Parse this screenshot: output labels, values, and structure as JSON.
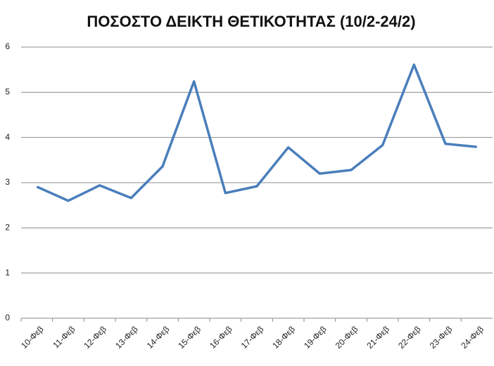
{
  "chart_data": {
    "type": "line",
    "title": "ΠΟΣΟΣΤΟ ΔΕΙΚΤΗ ΘΕΤΙΚΟΤΗΤΑΣ (10/2-24/2)",
    "categories": [
      "10-Φεβ",
      "11-Φεβ",
      "12-Φεβ",
      "13-Φεβ",
      "14-Φεβ",
      "15-Φεβ",
      "16-Φεβ",
      "17-Φεβ",
      "18-Φεβ",
      "19-Φεβ",
      "20-Φεβ",
      "21-Φεβ",
      "22-Φεβ",
      "23-Φεβ",
      "24-Φεβ"
    ],
    "values": [
      2.91,
      2.6,
      2.94,
      2.66,
      3.36,
      5.24,
      2.77,
      2.92,
      3.78,
      3.2,
      3.28,
      3.83,
      5.61,
      3.86,
      3.79
    ],
    "color": "#4a7ebb",
    "ylim": [
      0,
      6
    ],
    "yticks": [
      0,
      1,
      2,
      3,
      4,
      5,
      6
    ],
    "grid": true
  }
}
